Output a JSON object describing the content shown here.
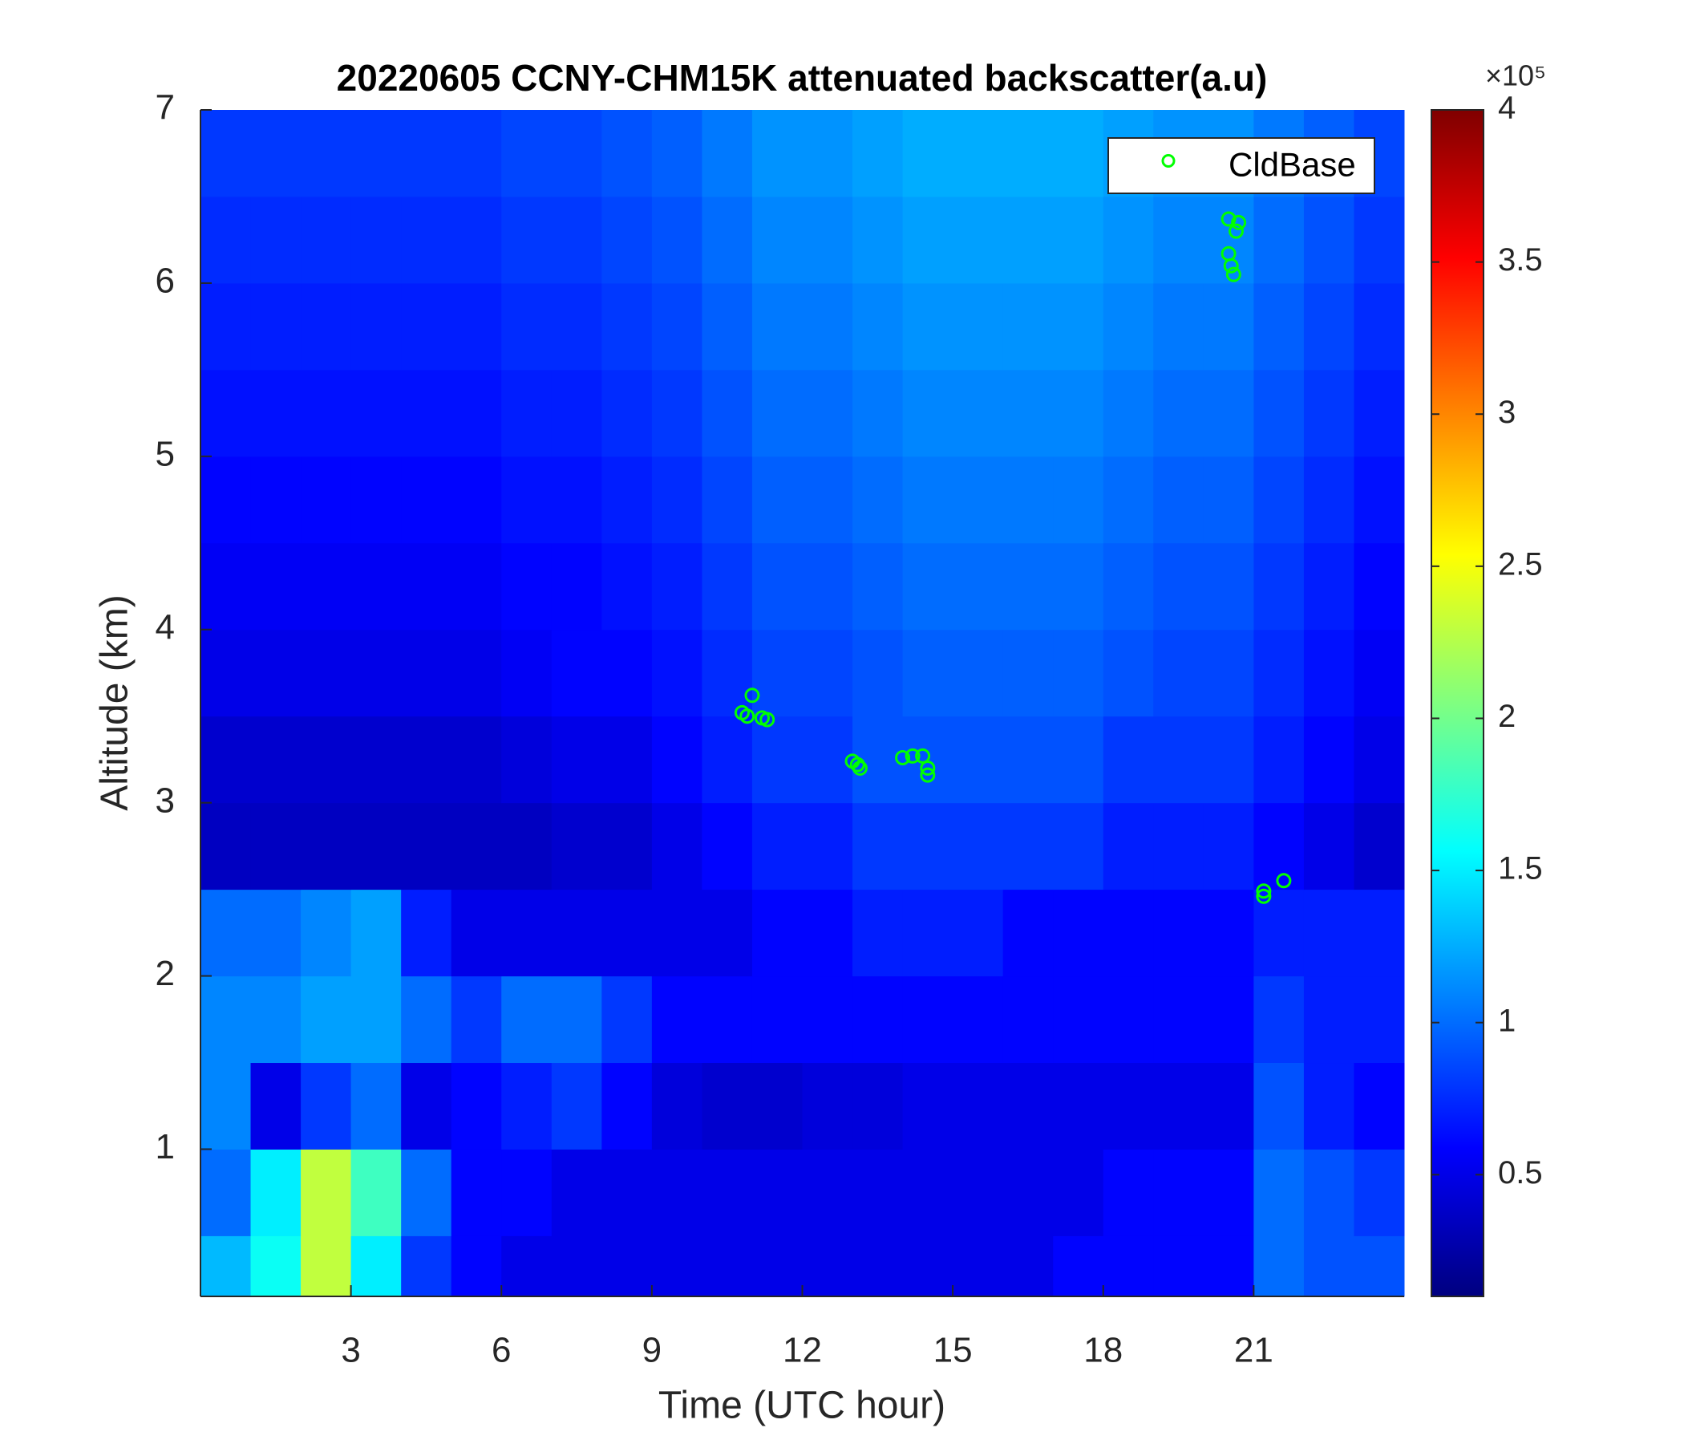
{
  "chart_data": {
    "type": "heatmap",
    "title": "20220605 CCNY-CHM15K attenuated backscatter(a.u)",
    "x_label": "Time (UTC hour)",
    "y_label": "Altitude (km)",
    "xbins": [
      0,
      1,
      2,
      3,
      4,
      5,
      6,
      7,
      8,
      9,
      10,
      11,
      12,
      13,
      14,
      15,
      16,
      17,
      18,
      19,
      20,
      21,
      22,
      23,
      24
    ],
    "ybins": [
      0.15,
      0.5,
      1,
      1.5,
      2,
      2.5,
      3,
      3.5,
      4,
      4.5,
      5,
      5.5,
      6,
      6.5,
      7
    ],
    "z": [
      [
        1.3,
        1.6,
        2.3,
        1.5,
        0.8,
        0.6,
        0.5,
        0.5,
        0.5,
        0.5,
        0.5,
        0.5,
        0.5,
        0.5,
        0.5,
        0.5,
        0.5,
        0.6,
        0.6,
        0.6,
        0.6,
        1.0,
        0.9,
        0.9
      ],
      [
        1.0,
        1.5,
        2.3,
        1.8,
        1.0,
        0.6,
        0.6,
        0.5,
        0.5,
        0.5,
        0.5,
        0.5,
        0.5,
        0.5,
        0.5,
        0.5,
        0.5,
        0.5,
        0.6,
        0.6,
        0.6,
        1.0,
        0.9,
        0.8
      ],
      [
        1.1,
        0.5,
        0.8,
        1.0,
        0.5,
        0.6,
        0.7,
        0.8,
        0.6,
        0.45,
        0.4,
        0.4,
        0.45,
        0.45,
        0.5,
        0.5,
        0.5,
        0.5,
        0.5,
        0.5,
        0.5,
        0.9,
        0.7,
        0.6
      ],
      [
        1.1,
        1.1,
        1.2,
        1.2,
        1.0,
        0.8,
        1.0,
        1.0,
        0.8,
        0.6,
        0.6,
        0.6,
        0.6,
        0.6,
        0.6,
        0.6,
        0.6,
        0.6,
        0.6,
        0.6,
        0.6,
        0.8,
        0.7,
        0.7
      ],
      [
        1.0,
        1.0,
        1.1,
        1.2,
        0.7,
        0.5,
        0.5,
        0.5,
        0.5,
        0.5,
        0.5,
        0.6,
        0.6,
        0.7,
        0.7,
        0.7,
        0.6,
        0.6,
        0.6,
        0.6,
        0.6,
        0.7,
        0.7,
        0.7
      ],
      [
        0.35,
        0.35,
        0.35,
        0.35,
        0.35,
        0.35,
        0.35,
        0.4,
        0.4,
        0.5,
        0.6,
        0.7,
        0.7,
        0.8,
        0.8,
        0.8,
        0.8,
        0.8,
        0.7,
        0.7,
        0.7,
        0.6,
        0.5,
        0.4
      ],
      [
        0.4,
        0.4,
        0.4,
        0.4,
        0.4,
        0.4,
        0.45,
        0.5,
        0.5,
        0.6,
        0.7,
        0.8,
        0.8,
        0.9,
        0.9,
        0.9,
        0.9,
        0.9,
        0.8,
        0.8,
        0.8,
        0.7,
        0.6,
        0.5
      ],
      [
        0.5,
        0.5,
        0.5,
        0.5,
        0.5,
        0.5,
        0.55,
        0.6,
        0.6,
        0.65,
        0.75,
        0.85,
        0.85,
        0.9,
        0.95,
        0.95,
        0.95,
        0.95,
        0.9,
        0.85,
        0.85,
        0.75,
        0.65,
        0.55
      ],
      [
        0.55,
        0.55,
        0.55,
        0.55,
        0.55,
        0.55,
        0.6,
        0.6,
        0.65,
        0.7,
        0.8,
        0.9,
        0.9,
        0.95,
        1.0,
        1.0,
        1.0,
        1.0,
        0.95,
        0.9,
        0.9,
        0.8,
        0.7,
        0.6
      ],
      [
        0.6,
        0.6,
        0.6,
        0.6,
        0.6,
        0.6,
        0.65,
        0.65,
        0.7,
        0.75,
        0.85,
        0.95,
        0.95,
        1.0,
        1.05,
        1.05,
        1.05,
        1.05,
        1.0,
        0.95,
        0.95,
        0.85,
        0.75,
        0.65
      ],
      [
        0.65,
        0.65,
        0.65,
        0.65,
        0.65,
        0.65,
        0.7,
        0.7,
        0.75,
        0.8,
        0.9,
        1.0,
        1.0,
        1.05,
        1.1,
        1.1,
        1.1,
        1.1,
        1.05,
        1.0,
        1.0,
        0.9,
        0.8,
        0.7
      ],
      [
        0.7,
        0.7,
        0.7,
        0.7,
        0.7,
        0.7,
        0.75,
        0.75,
        0.8,
        0.85,
        0.95,
        1.05,
        1.05,
        1.1,
        1.15,
        1.15,
        1.15,
        1.15,
        1.1,
        1.05,
        1.05,
        0.95,
        0.85,
        0.75
      ],
      [
        0.75,
        0.75,
        0.75,
        0.75,
        0.75,
        0.75,
        0.8,
        0.8,
        0.85,
        0.9,
        1.0,
        1.1,
        1.1,
        1.15,
        1.2,
        1.2,
        1.2,
        1.2,
        1.15,
        1.1,
        1.1,
        1.0,
        0.9,
        0.8
      ],
      [
        0.8,
        0.8,
        0.8,
        0.8,
        0.8,
        0.8,
        0.85,
        0.85,
        0.9,
        0.95,
        1.05,
        1.15,
        1.15,
        1.2,
        1.25,
        1.25,
        1.25,
        1.25,
        1.2,
        1.15,
        1.15,
        1.05,
        0.95,
        0.85
      ]
    ],
    "colormap": "jet",
    "clim": [
      0.1,
      4
    ],
    "colorbar_ticks": [
      0.5,
      1,
      1.5,
      2,
      2.5,
      3,
      3.5,
      4
    ],
    "colorbar_scale_label": "×10⁵",
    "xlim": [
      0,
      24
    ],
    "ylim": [
      0.15,
      7
    ],
    "xticks": [
      3,
      6,
      9,
      12,
      15,
      18,
      21
    ],
    "yticks": [
      1,
      2,
      3,
      4,
      5,
      6,
      7
    ],
    "legend": "northeast",
    "series": [
      {
        "name": "CldBase",
        "type": "scatter",
        "color": "#00ff00",
        "x": [
          10.8,
          10.9,
          11.0,
          11.2,
          11.3,
          13.0,
          13.1,
          13.15,
          14.0,
          14.2,
          14.4,
          14.5,
          14.5,
          20.5,
          20.5,
          20.55,
          20.6,
          20.7,
          20.65,
          21.2,
          21.2,
          21.6
        ],
        "y": [
          3.52,
          3.5,
          3.62,
          3.49,
          3.48,
          3.24,
          3.22,
          3.2,
          3.26,
          3.27,
          3.27,
          3.16,
          3.2,
          6.37,
          6.17,
          6.1,
          6.05,
          6.35,
          6.3,
          2.49,
          2.46,
          2.55
        ]
      }
    ]
  }
}
